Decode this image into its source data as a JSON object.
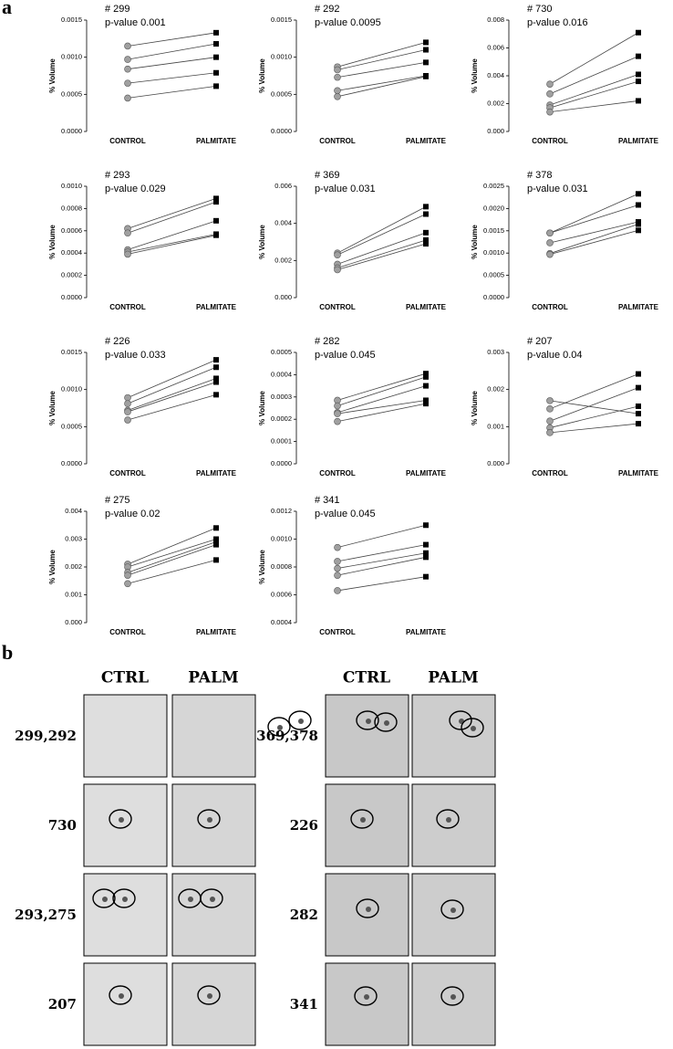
{
  "panel_labels": [
    "a",
    "b"
  ],
  "chart_data": [
    {
      "type": "line",
      "title": "# 299",
      "subtitle": "p-value 0.001",
      "ylabel": "% Volume",
      "categories": [
        "CONTROL",
        "PALMITATE"
      ],
      "point_colors": [
        "#a0a0a0",
        "#000000"
      ],
      "color": "#444444",
      "ylim": [
        0,
        0.0015
      ],
      "yticks": [
        {
          "value": 0,
          "label": "0.0000"
        },
        {
          "value": 0.0005,
          "label": "0.0005"
        },
        {
          "value": 0.001,
          "label": "0.0010"
        },
        {
          "value": 0.0015,
          "label": "0.0015"
        }
      ],
      "series": [
        {
          "values": [
            0.00115,
            0.00133
          ]
        },
        {
          "values": [
            0.00097,
            0.00118
          ]
        },
        {
          "values": [
            0.00084,
            0.001
          ]
        },
        {
          "values": [
            0.00065,
            0.00079
          ]
        },
        {
          "values": [
            0.00045,
            0.00061
          ]
        }
      ]
    },
    {
      "type": "line",
      "title": "# 292",
      "subtitle": "p-value 0.0095",
      "ylabel": "% Volume",
      "categories": [
        "CONTROL",
        "PALMITATE"
      ],
      "point_colors": [
        "#a0a0a0",
        "#000000"
      ],
      "color": "#444444",
      "ylim": [
        0,
        0.0015
      ],
      "yticks": [
        {
          "value": 0,
          "label": "0.0000"
        },
        {
          "value": 0.0005,
          "label": "0.0005"
        },
        {
          "value": 0.001,
          "label": "0.0010"
        },
        {
          "value": 0.0015,
          "label": "0.0015"
        }
      ],
      "series": [
        {
          "values": [
            0.00087,
            0.0012
          ]
        },
        {
          "values": [
            0.00083,
            0.0011
          ]
        },
        {
          "values": [
            0.00073,
            0.00093
          ]
        },
        {
          "values": [
            0.00055,
            0.00075
          ]
        },
        {
          "values": [
            0.00047,
            0.00074
          ]
        }
      ]
    },
    {
      "type": "line",
      "title": "# 730",
      "subtitle": "p-value 0.016",
      "ylabel": "% Volume",
      "categories": [
        "CONTROL",
        "PALMITATE"
      ],
      "point_colors": [
        "#a0a0a0",
        "#000000"
      ],
      "color": "#444444",
      "ylim": [
        0,
        0.008
      ],
      "yticks": [
        {
          "value": 0,
          "label": "0.000"
        },
        {
          "value": 0.002,
          "label": "0.002"
        },
        {
          "value": 0.004,
          "label": "0.004"
        },
        {
          "value": 0.006,
          "label": "0.006"
        },
        {
          "value": 0.008,
          "label": "0.008"
        }
      ],
      "series": [
        {
          "values": [
            0.0034,
            0.0071
          ]
        },
        {
          "values": [
            0.0027,
            0.0054
          ]
        },
        {
          "values": [
            0.0019,
            0.0041
          ]
        },
        {
          "values": [
            0.0017,
            0.0036
          ]
        },
        {
          "values": [
            0.0014,
            0.0022
          ]
        }
      ]
    },
    {
      "type": "line",
      "title": "# 293",
      "subtitle": "p-value 0.029",
      "ylabel": "% Volume",
      "categories": [
        "CONTROL",
        "PALMITATE"
      ],
      "point_colors": [
        "#a0a0a0",
        "#000000"
      ],
      "color": "#444444",
      "ylim": [
        0,
        0.001
      ],
      "yticks": [
        {
          "value": 0,
          "label": "0.0000"
        },
        {
          "value": 0.0002,
          "label": "0.0002"
        },
        {
          "value": 0.0004,
          "label": "0.0004"
        },
        {
          "value": 0.0006,
          "label": "0.0006"
        },
        {
          "value": 0.0008,
          "label": "0.0008"
        },
        {
          "value": 0.001,
          "label": "0.0010"
        }
      ],
      "series": [
        {
          "values": [
            0.00062,
            0.00089
          ]
        },
        {
          "values": [
            0.00058,
            0.00086
          ]
        },
        {
          "values": [
            0.00043,
            0.00069
          ]
        },
        {
          "values": [
            0.00041,
            0.00057
          ]
        },
        {
          "values": [
            0.00039,
            0.00056
          ]
        }
      ]
    },
    {
      "type": "line",
      "title": "# 369",
      "subtitle": "p-value 0.031",
      "ylabel": "% Volume",
      "categories": [
        "CONTROL",
        "PALMITATE"
      ],
      "point_colors": [
        "#a0a0a0",
        "#000000"
      ],
      "color": "#444444",
      "ylim": [
        0,
        0.006
      ],
      "yticks": [
        {
          "value": 0,
          "label": "0.000"
        },
        {
          "value": 0.002,
          "label": "0.002"
        },
        {
          "value": 0.004,
          "label": "0.004"
        },
        {
          "value": 0.006,
          "label": "0.006"
        }
      ],
      "series": [
        {
          "values": [
            0.0024,
            0.0049
          ]
        },
        {
          "values": [
            0.0023,
            0.0045
          ]
        },
        {
          "values": [
            0.0018,
            0.0035
          ]
        },
        {
          "values": [
            0.0016,
            0.0031
          ]
        },
        {
          "values": [
            0.0015,
            0.0029
          ]
        }
      ]
    },
    {
      "type": "line",
      "title": "# 378",
      "subtitle": "p-value 0.031",
      "ylabel": "% Volume",
      "categories": [
        "CONTROL",
        "PALMITATE"
      ],
      "point_colors": [
        "#a0a0a0",
        "#000000"
      ],
      "color": "#444444",
      "ylim": [
        0,
        0.0025
      ],
      "yticks": [
        {
          "value": 0,
          "label": "0.0000"
        },
        {
          "value": 0.0005,
          "label": "0.0005"
        },
        {
          "value": 0.001,
          "label": "0.0010"
        },
        {
          "value": 0.0015,
          "label": "0.0015"
        },
        {
          "value": 0.002,
          "label": "0.0020"
        },
        {
          "value": 0.0025,
          "label": "0.0025"
        }
      ],
      "series": [
        {
          "values": [
            0.00145,
            0.00233
          ]
        },
        {
          "values": [
            0.00145,
            0.00208
          ]
        },
        {
          "values": [
            0.00123,
            0.0017
          ]
        },
        {
          "values": [
            0.00099,
            0.00165
          ]
        },
        {
          "values": [
            0.00097,
            0.00151
          ]
        }
      ]
    },
    {
      "type": "line",
      "title": "# 226",
      "subtitle": "p-value 0.033",
      "ylabel": "% Volume",
      "categories": [
        "CONTROL",
        "PALMITATE"
      ],
      "point_colors": [
        "#a0a0a0",
        "#000000"
      ],
      "color": "#444444",
      "ylim": [
        0,
        0.0015
      ],
      "yticks": [
        {
          "value": 0,
          "label": "0.0000"
        },
        {
          "value": 0.0005,
          "label": "0.0005"
        },
        {
          "value": 0.001,
          "label": "0.0010"
        },
        {
          "value": 0.0015,
          "label": "0.0015"
        }
      ],
      "series": [
        {
          "values": [
            0.00089,
            0.0014
          ]
        },
        {
          "values": [
            0.00081,
            0.0013
          ]
        },
        {
          "values": [
            0.00072,
            0.00115
          ]
        },
        {
          "values": [
            0.0007,
            0.0011
          ]
        },
        {
          "values": [
            0.00059,
            0.00093
          ]
        }
      ]
    },
    {
      "type": "line",
      "title": "# 282",
      "subtitle": "p-value 0.045",
      "ylabel": "% Volume",
      "categories": [
        "CONTROL",
        "PALMITATE"
      ],
      "point_colors": [
        "#a0a0a0",
        "#000000"
      ],
      "color": "#444444",
      "ylim": [
        0,
        0.0005
      ],
      "yticks": [
        {
          "value": 0,
          "label": "0.0000"
        },
        {
          "value": 0.0001,
          "label": "0.0001"
        },
        {
          "value": 0.0002,
          "label": "0.0002"
        },
        {
          "value": 0.0003,
          "label": "0.0003"
        },
        {
          "value": 0.0004,
          "label": "0.0004"
        },
        {
          "value": 0.0005,
          "label": "0.0005"
        }
      ],
      "series": [
        {
          "values": [
            0.000285,
            0.000405
          ]
        },
        {
          "values": [
            0.00026,
            0.00039
          ]
        },
        {
          "values": [
            0.00023,
            0.00035
          ]
        },
        {
          "values": [
            0.000225,
            0.000285
          ]
        },
        {
          "values": [
            0.00019,
            0.00027
          ]
        }
      ]
    },
    {
      "type": "line",
      "title": "# 207",
      "subtitle": "p-value 0.04",
      "ylabel": "% Volume",
      "categories": [
        "CONTROL",
        "PALMITATE"
      ],
      "point_colors": [
        "#a0a0a0",
        "#000000"
      ],
      "color": "#444444",
      "ylim": [
        0,
        0.003
      ],
      "yticks": [
        {
          "value": 0,
          "label": "0.000"
        },
        {
          "value": 0.001,
          "label": "0.001"
        },
        {
          "value": 0.002,
          "label": "0.002"
        },
        {
          "value": 0.003,
          "label": "0.003"
        }
      ],
      "series": [
        {
          "values": [
            0.0017,
            0.00135
          ]
        },
        {
          "values": [
            0.00148,
            0.00242
          ]
        },
        {
          "values": [
            0.00115,
            0.00205
          ]
        },
        {
          "values": [
            0.00097,
            0.00155
          ]
        },
        {
          "values": [
            0.00084,
            0.00108
          ]
        }
      ]
    },
    {
      "type": "line",
      "title": "# 275",
      "subtitle": "p-value 0.02",
      "ylabel": "% Volume",
      "categories": [
        "CONTROL",
        "PALMITATE"
      ],
      "point_colors": [
        "#a0a0a0",
        "#000000"
      ],
      "color": "#444444",
      "ylim": [
        0,
        0.004
      ],
      "yticks": [
        {
          "value": 0,
          "label": "0.000"
        },
        {
          "value": 0.001,
          "label": "0.001"
        },
        {
          "value": 0.002,
          "label": "0.002"
        },
        {
          "value": 0.003,
          "label": "0.003"
        },
        {
          "value": 0.004,
          "label": "0.004"
        }
      ],
      "series": [
        {
          "values": [
            0.0021,
            0.0034
          ]
        },
        {
          "values": [
            0.002,
            0.003
          ]
        },
        {
          "values": [
            0.0018,
            0.0029
          ]
        },
        {
          "values": [
            0.0017,
            0.0028
          ]
        },
        {
          "values": [
            0.0014,
            0.00225
          ]
        }
      ]
    },
    {
      "type": "line",
      "title": "# 341",
      "subtitle": "p-value 0.045",
      "ylabel": "% Volume",
      "categories": [
        "CONTROL",
        "PALMITATE"
      ],
      "point_colors": [
        "#a0a0a0",
        "#000000"
      ],
      "color": "#444444",
      "ylim": [
        0.0004,
        0.0012
      ],
      "yticks": [
        {
          "value": 0.0004,
          "label": "0.0004"
        },
        {
          "value": 0.0006,
          "label": "0.0006"
        },
        {
          "value": 0.0008,
          "label": "0.0008"
        },
        {
          "value": 0.001,
          "label": "0.0010"
        },
        {
          "value": 0.0012,
          "label": "0.0012"
        }
      ],
      "series": [
        {
          "values": [
            0.00094,
            0.0011
          ]
        },
        {
          "values": [
            0.00084,
            0.00096
          ]
        },
        {
          "values": [
            0.00079,
            0.0009
          ]
        },
        {
          "values": [
            0.00074,
            0.00087
          ]
        },
        {
          "values": [
            0.00063,
            0.00073
          ]
        }
      ]
    }
  ],
  "panel_b": {
    "groups": [
      {
        "headers": [
          "CTRL",
          "PALM"
        ],
        "rows": [
          "299,292",
          "730",
          "293,275",
          "207"
        ]
      },
      {
        "headers": [
          "CTRL",
          "PALM"
        ],
        "rows": [
          "369,378",
          "226",
          "282",
          "341"
        ]
      }
    ]
  }
}
